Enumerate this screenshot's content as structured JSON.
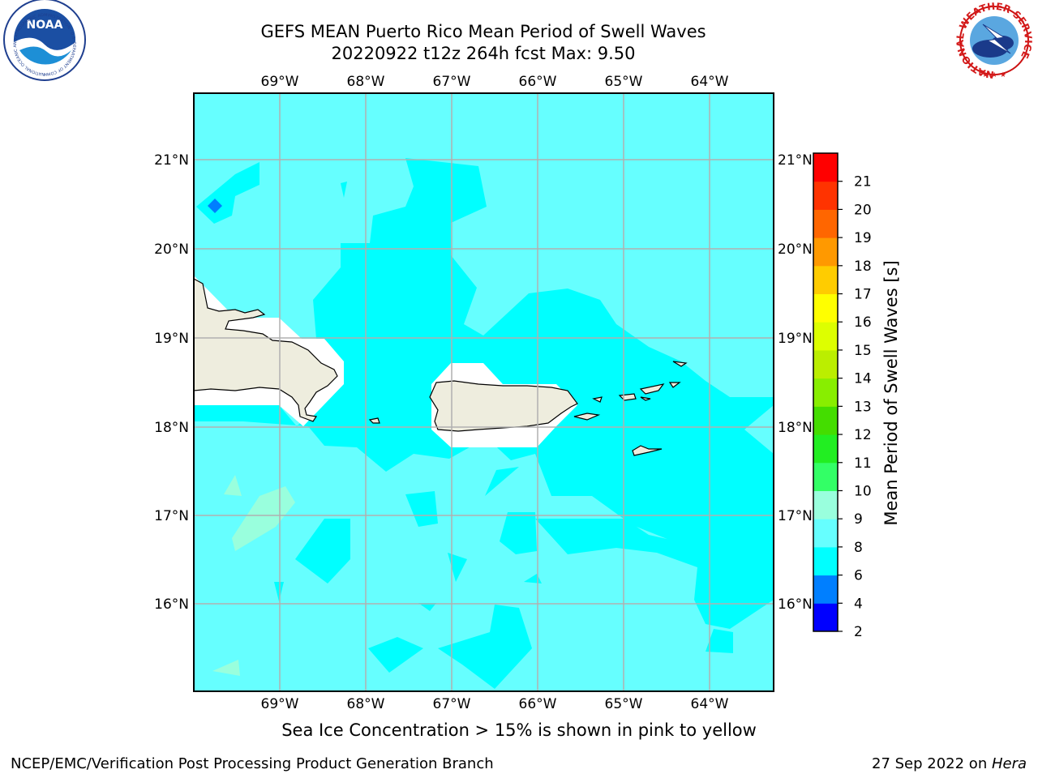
{
  "header": {
    "title_line1": "GEFS MEAN Puerto Rico Mean Period of Swell Waves",
    "title_line2": "20220922 t12z 264h fcst   Max: 9.50"
  },
  "logos": {
    "noaa_text": "NOAA",
    "noaa_ring_text": "NATIONAL OCEANIC AND ATMOSPHERIC ADMINISTRATION · U.S. DEPARTMENT OF COMMERCE",
    "nws_ring_text": "NATIONAL WEATHER SERVICE"
  },
  "map": {
    "region": "Puerto Rico",
    "lon_ticks": [
      "69°W",
      "68°W",
      "67°W",
      "66°W",
      "65°W",
      "64°W"
    ],
    "lat_ticks": [
      "21°N",
      "20°N",
      "19°N",
      "18°N",
      "17°N",
      "16°N"
    ],
    "grid": true,
    "land_color": "#eeedde",
    "ocean_color": "#66ffff",
    "max_value": 9.5
  },
  "colorbar": {
    "title": "Mean Period of Swell Waves [s]",
    "tick_labels": [
      "2",
      "4",
      "6",
      "8",
      "9",
      "10",
      "11",
      "12",
      "13",
      "14",
      "15",
      "16",
      "17",
      "18",
      "19",
      "20",
      "21"
    ],
    "levels": [
      {
        "from": 2,
        "to": 4,
        "color": "#0000ff"
      },
      {
        "from": 4,
        "to": 6,
        "color": "#007fff"
      },
      {
        "from": 6,
        "to": 8,
        "color": "#00ffff"
      },
      {
        "from": 8,
        "to": 9,
        "color": "#66ffff"
      },
      {
        "from": 9,
        "to": 10,
        "color": "#99ffdd"
      },
      {
        "from": 10,
        "to": 11,
        "color": "#33ff66"
      },
      {
        "from": 11,
        "to": 12,
        "color": "#22ee22"
      },
      {
        "from": 12,
        "to": 13,
        "color": "#44dd00"
      },
      {
        "from": 13,
        "to": 14,
        "color": "#88ee00"
      },
      {
        "from": 14,
        "to": 15,
        "color": "#bbee00"
      },
      {
        "from": 15,
        "to": 16,
        "color": "#ddff00"
      },
      {
        "from": 16,
        "to": 17,
        "color": "#ffff00"
      },
      {
        "from": 17,
        "to": 18,
        "color": "#ffcc00"
      },
      {
        "from": 18,
        "to": 19,
        "color": "#ff9900"
      },
      {
        "from": 19,
        "to": 20,
        "color": "#ff6600"
      },
      {
        "from": 20,
        "to": 21,
        "color": "#ff3300"
      },
      {
        "from": 21,
        "to": 22,
        "color": "#ff0000"
      }
    ]
  },
  "footer": {
    "caption": "Sea Ice Concentration > 15% is shown in pink to yellow",
    "credit": "NCEP/EMC/Verification Post Processing Product Generation Branch",
    "date": "27 Sep 2022 on ",
    "host": "Hera"
  }
}
